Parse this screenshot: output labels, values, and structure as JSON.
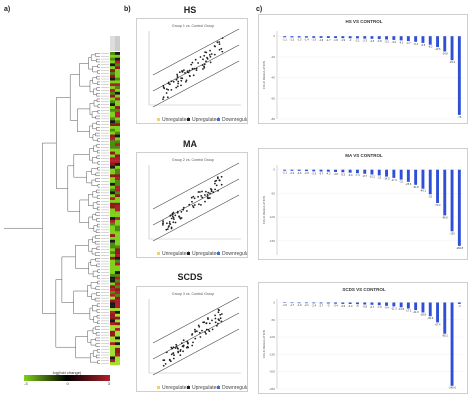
{
  "panel_labels": {
    "a": "a)",
    "b": "b)",
    "c": "c)"
  },
  "heatmap": {
    "colorbar_title": "log(fold change)",
    "colorbar_ticks": [
      "-3",
      "0",
      "3"
    ],
    "colors": {
      "low": "#7fd01a",
      "mid": "#000000",
      "high": "#b0202a"
    }
  },
  "scatter_panels": [
    {
      "title": "HS",
      "subtitle": "Group 1 vs. Control Group",
      "legend": [
        "Unregulated",
        "Upregulated",
        "Downregulated"
      ]
    },
    {
      "title": "MA",
      "subtitle": "Group 2 vs. Control Group",
      "legend": [
        "Unregulated",
        "Upregulated",
        "Downregulated"
      ]
    },
    {
      "title": "SCDS",
      "subtitle": "Group 3 vs. Control Group",
      "legend": [
        "Unregulated",
        "Upregulated",
        "Downregulated"
      ]
    }
  ],
  "chart_data": [
    {
      "type": "bar",
      "title": "HS VS CONTROL",
      "ylabel": "FOLD REGULATION",
      "ylim": [
        -80,
        5
      ],
      "values": [
        -1.1,
        -1.2,
        -1.3,
        -1.4,
        -1.5,
        -1.6,
        -1.7,
        -1.8,
        -1.9,
        -2.0,
        -2.1,
        -2.3,
        -2.5,
        -2.8,
        -3.2,
        -3.6,
        -4.1,
        -4.7,
        -5.4,
        -6.5,
        -8.2,
        -10.5,
        -14.8,
        -23.2,
        -76.0
      ]
    },
    {
      "type": "bar",
      "title": "MA VS CONTROL",
      "ylabel": "FOLD REGULATION",
      "ylim": [
        -180,
        10
      ],
      "values": [
        -2.1,
        -2.3,
        -2.6,
        -2.9,
        -3.3,
        -3.7,
        -4.2,
        -4.8,
        -5.5,
        -6.4,
        -7.4,
        -8.7,
        -10.2,
        -12.0,
        -14.5,
        -17.4,
        -21.0,
        -25.6,
        -31.8,
        -40.1,
        -52.0,
        -70.3,
        -96.5,
        -130.0,
        -160.8
      ]
    },
    {
      "type": "bar",
      "title": "SCDS VS CONTROL",
      "ylabel": "FOLD REGULATION",
      "ylim": [
        -250,
        10
      ],
      "values": [
        -1.5,
        -1.7,
        -1.9,
        -2.1,
        -2.4,
        -2.7,
        -3.0,
        -3.4,
        -3.9,
        -4.4,
        -5.0,
        -5.8,
        -6.7,
        -7.9,
        -9.4,
        -11.3,
        -13.8,
        -17.2,
        -21.9,
        -28.8,
        -39.5,
        -57.4,
        -90.2,
        -240.6,
        -4.0
      ]
    }
  ]
}
